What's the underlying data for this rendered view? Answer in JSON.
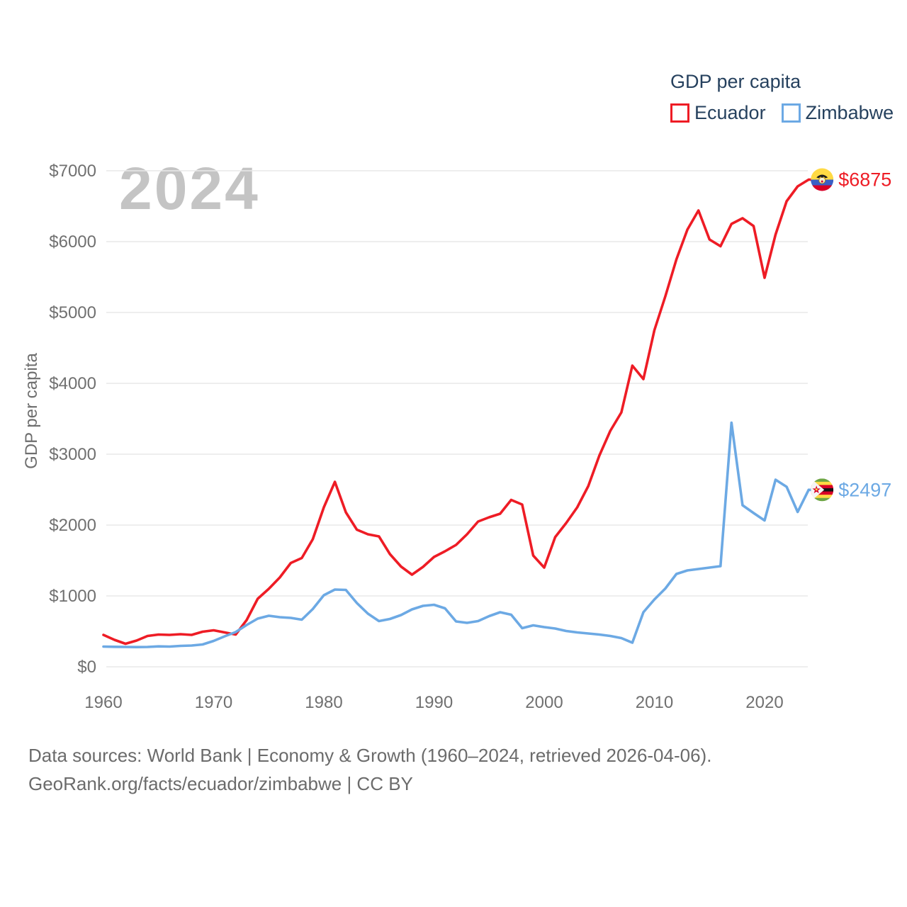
{
  "legend": {
    "title": "GDP per capita",
    "items": [
      {
        "id": "ecuador",
        "label": "Ecuador",
        "color": "#ee1c25"
      },
      {
        "id": "zimbabwe",
        "label": "Zimbabwe",
        "color": "#6ca9e4"
      }
    ]
  },
  "watermark": "2024",
  "footer": {
    "line1": "Data sources: World Bank | Economy & Growth (1960–2024, retrieved 2026-04-06).",
    "line2": "GeoRank.org/facts/ecuador/zimbabwe | CC BY"
  },
  "chart_data": {
    "type": "line",
    "title": "GDP per capita",
    "xlabel": "",
    "ylabel": "GDP per capita",
    "xlim": [
      1960,
      2024
    ],
    "ylim": [
      0,
      7000
    ],
    "grid": true,
    "legend_position": "top-right",
    "y_ticks": [
      0,
      1000,
      2000,
      3000,
      4000,
      5000,
      6000,
      7000
    ],
    "y_tick_prefix": "$",
    "x_ticks": [
      1960,
      1970,
      1980,
      1990,
      2000,
      2010,
      2020
    ],
    "years": [
      1960,
      1961,
      1962,
      1963,
      1964,
      1965,
      1966,
      1967,
      1968,
      1969,
      1970,
      1971,
      1972,
      1973,
      1974,
      1975,
      1976,
      1977,
      1978,
      1979,
      1980,
      1981,
      1982,
      1983,
      1984,
      1985,
      1986,
      1987,
      1988,
      1989,
      1990,
      1991,
      1992,
      1993,
      1994,
      1995,
      1996,
      1997,
      1998,
      1999,
      2000,
      2001,
      2002,
      2003,
      2004,
      2005,
      2006,
      2007,
      2008,
      2009,
      2010,
      2011,
      2012,
      2013,
      2014,
      2015,
      2016,
      2017,
      2018,
      2019,
      2020,
      2021,
      2022,
      2023,
      2024
    ],
    "series": [
      {
        "id": "ecuador",
        "name": "Ecuador",
        "color": "#ee1c25",
        "end_label": "$6875",
        "end_value": 6875,
        "flag": "ecuador",
        "values": [
          450,
          380,
          325,
          370,
          435,
          455,
          450,
          460,
          450,
          495,
          515,
          485,
          455,
          660,
          960,
          1100,
          1260,
          1465,
          1535,
          1800,
          2250,
          2610,
          2180,
          1935,
          1870,
          1840,
          1590,
          1415,
          1300,
          1410,
          1550,
          1630,
          1720,
          1870,
          2050,
          2110,
          2160,
          2355,
          2290,
          1570,
          1400,
          1830,
          2030,
          2250,
          2550,
          2980,
          3330,
          3590,
          4250,
          4060,
          4750,
          5230,
          5750,
          6170,
          6440,
          6030,
          5935,
          6250,
          6330,
          6220,
          5490,
          6100,
          6570,
          6780,
          6875
        ]
      },
      {
        "id": "zimbabwe",
        "name": "Zimbabwe",
        "color": "#6ca9e4",
        "end_label": "$2497",
        "end_value": 2497,
        "flag": "zimbabwe",
        "values": [
          285,
          282,
          280,
          278,
          280,
          288,
          285,
          295,
          300,
          315,
          365,
          430,
          490,
          590,
          680,
          720,
          700,
          690,
          665,
          815,
          1010,
          1090,
          1085,
          900,
          750,
          645,
          675,
          730,
          810,
          860,
          875,
          825,
          640,
          620,
          645,
          715,
          770,
          735,
          545,
          585,
          560,
          540,
          505,
          485,
          470,
          455,
          435,
          405,
          340,
          770,
          950,
          1105,
          1310,
          1360,
          1380,
          1400,
          1420,
          3445,
          2280,
          2170,
          2065,
          2640,
          2540,
          2185,
          2497
        ]
      }
    ]
  }
}
